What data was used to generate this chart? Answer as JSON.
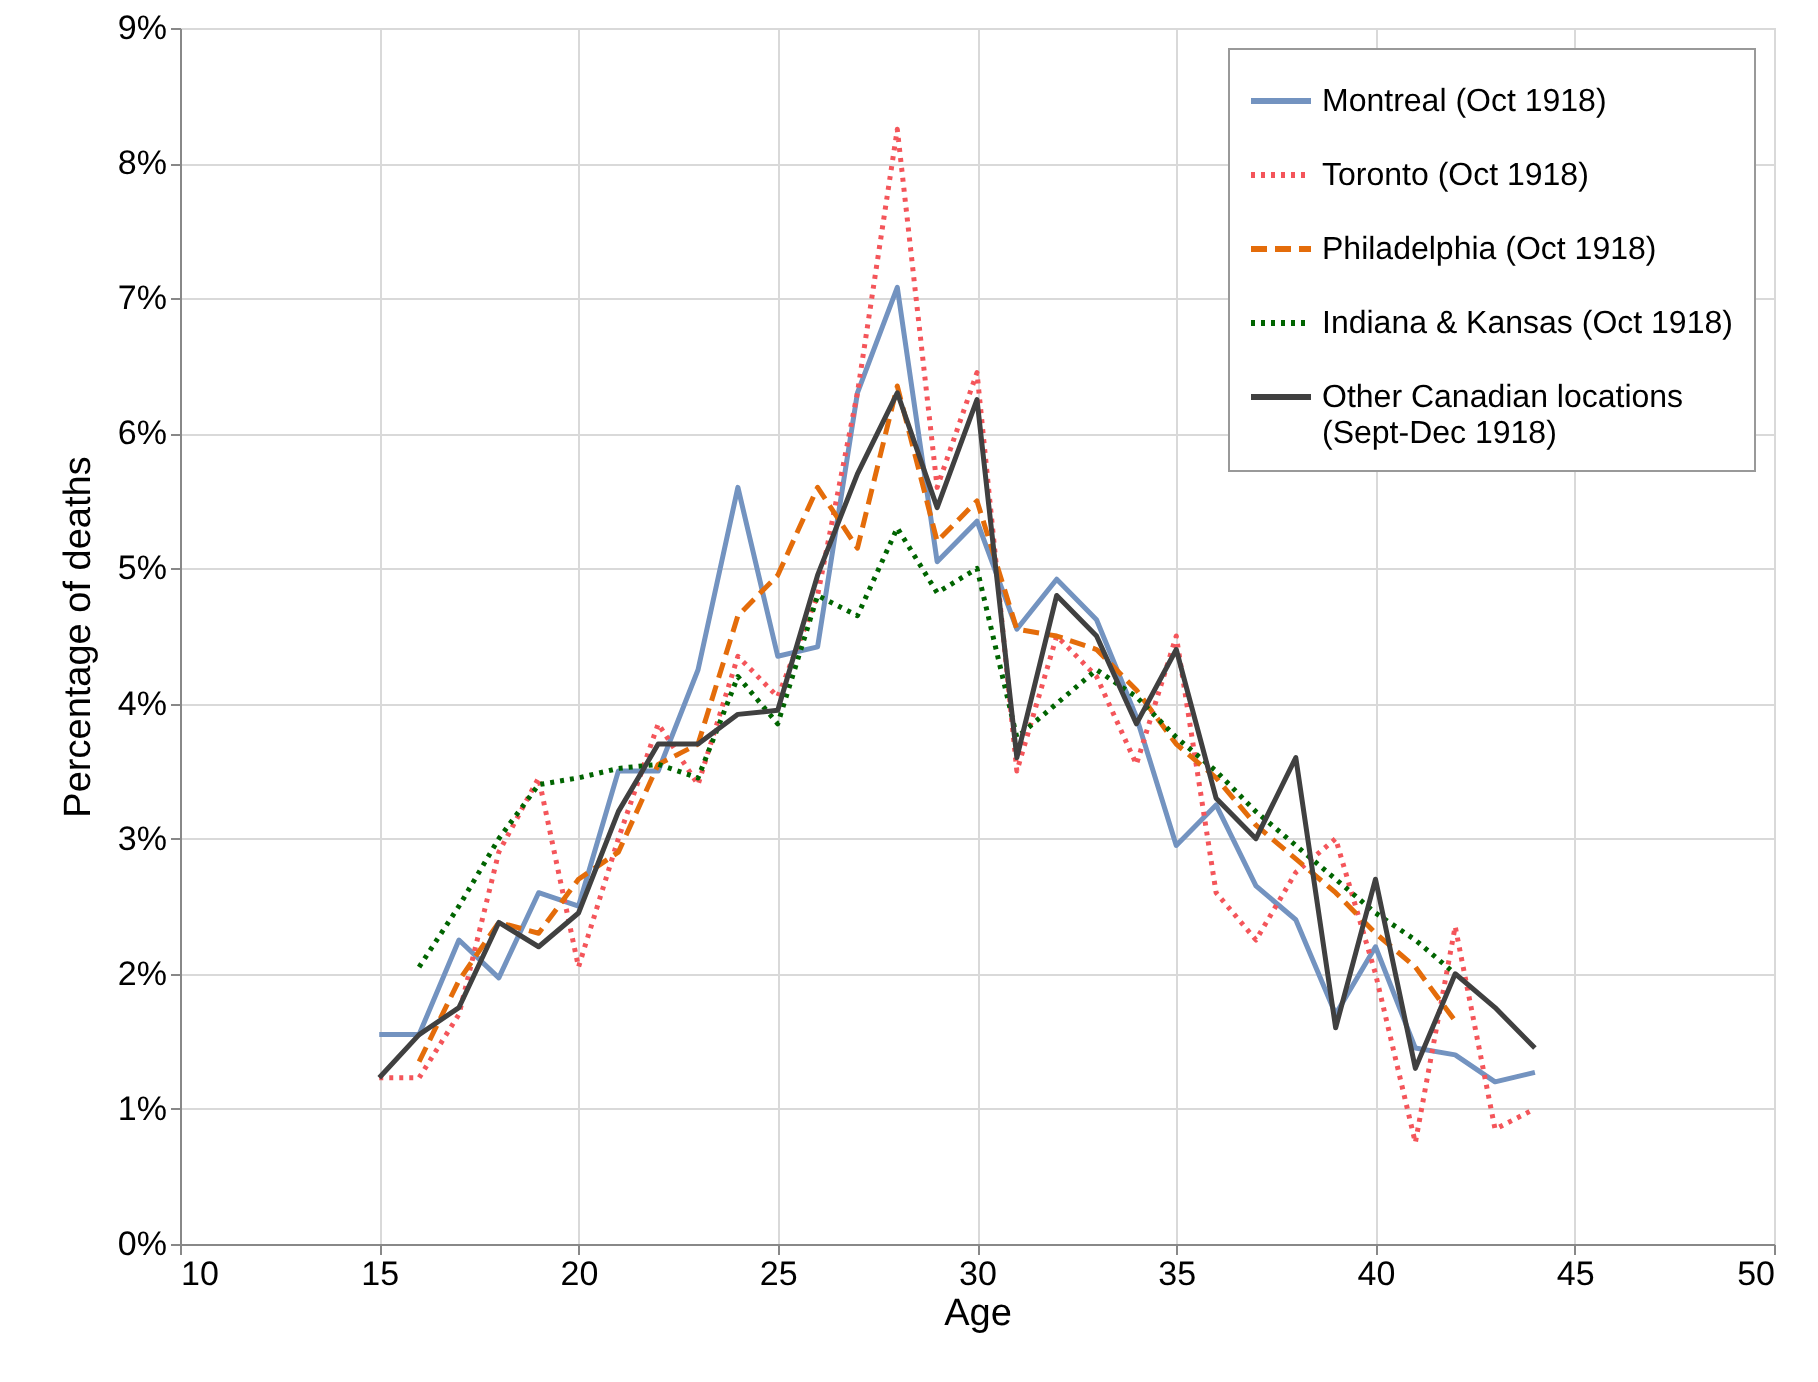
{
  "chart_data": {
    "type": "line",
    "xlabel": "Age",
    "ylabel": "Percentage of deaths",
    "xlim": [
      10,
      50
    ],
    "xticks": [
      10,
      15,
      20,
      25,
      30,
      35,
      40,
      45,
      50
    ],
    "ylim": [
      0,
      9
    ],
    "yticks": [
      {
        "value": 0,
        "label": "0%"
      },
      {
        "value": 1,
        "label": "1%"
      },
      {
        "value": 2,
        "label": "2%"
      },
      {
        "value": 3,
        "label": "3%"
      },
      {
        "value": 4,
        "label": "4%"
      },
      {
        "value": 5,
        "label": "5%"
      },
      {
        "value": 6,
        "label": "6%"
      },
      {
        "value": 7,
        "label": "7%"
      },
      {
        "value": 8,
        "label": "8%"
      },
      {
        "value": 9,
        "label": "9%"
      }
    ],
    "grid": true,
    "legend": "top right",
    "marker": "none",
    "series": [
      {
        "name": "Montreal (Oct 1918)",
        "color": "#7393c0",
        "line_style": "solid",
        "x": [
          15,
          16,
          17,
          18,
          19,
          20,
          21,
          22,
          23,
          24,
          25,
          26,
          27,
          28,
          29,
          30,
          31,
          32,
          33,
          34,
          35,
          36,
          37,
          38,
          39,
          40,
          41,
          42,
          43,
          44
        ],
        "values": [
          1.55,
          1.55,
          2.25,
          1.97,
          2.6,
          2.5,
          3.5,
          3.5,
          4.25,
          5.6,
          4.35,
          4.42,
          6.3,
          7.08,
          5.05,
          5.35,
          4.55,
          4.92,
          4.62,
          3.9,
          2.95,
          3.25,
          2.65,
          2.4,
          1.7,
          2.2,
          1.45,
          1.4,
          1.2,
          1.27
        ]
      },
      {
        "name": "Toronto (Oct 1918)",
        "color": "#f4555a",
        "line_style": "dotted",
        "x": [
          15,
          16,
          17,
          18,
          19,
          20,
          21,
          22,
          23,
          24,
          25,
          26,
          27,
          28,
          29,
          30,
          31,
          32,
          33,
          34,
          35,
          36,
          37,
          38,
          39,
          40,
          41,
          42,
          43,
          44
        ],
        "values": [
          1.23,
          1.23,
          1.7,
          2.9,
          3.45,
          2.05,
          3.0,
          3.85,
          3.4,
          4.35,
          4.05,
          4.8,
          6.3,
          8.25,
          5.6,
          6.45,
          3.5,
          4.5,
          4.2,
          3.55,
          4.5,
          2.6,
          2.25,
          2.75,
          3.0,
          2.0,
          0.75,
          2.35,
          0.85,
          1.0
        ]
      },
      {
        "name": "Philadelphia (Oct 1918)",
        "color": "#e46c0a",
        "line_style": "dashed",
        "x": [
          16,
          17,
          18,
          19,
          20,
          21,
          22,
          23,
          24,
          25,
          26,
          27,
          28,
          29,
          30,
          31,
          32,
          33,
          34,
          35,
          36,
          37,
          38,
          39,
          40,
          41,
          42
        ],
        "values": [
          1.35,
          1.95,
          2.38,
          2.3,
          2.7,
          2.9,
          3.55,
          3.7,
          4.65,
          4.95,
          5.6,
          5.15,
          6.35,
          5.2,
          5.5,
          4.55,
          4.5,
          4.4,
          4.1,
          3.7,
          3.45,
          3.1,
          2.85,
          2.6,
          2.3,
          2.05,
          1.65
        ]
      },
      {
        "name": "Indiana & Kansas (Oct 1918)",
        "color": "#006400",
        "line_style": "dotted",
        "x": [
          16,
          17,
          18,
          19,
          20,
          21,
          22,
          23,
          24,
          25,
          26,
          27,
          28,
          29,
          30,
          31,
          32,
          33,
          34,
          35,
          36,
          37,
          38,
          39,
          40,
          41,
          42
        ],
        "values": [
          2.05,
          2.5,
          3.0,
          3.4,
          3.45,
          3.52,
          3.55,
          3.45,
          4.2,
          3.85,
          4.8,
          4.65,
          5.3,
          4.82,
          5.0,
          3.75,
          4.0,
          4.25,
          4.05,
          3.75,
          3.5,
          3.2,
          2.95,
          2.7,
          2.45,
          2.25,
          2.0
        ]
      },
      {
        "name": "Other Canadian locations (Sept-Dec 1918)",
        "color": "#404040",
        "line_style": "solid",
        "x": [
          15,
          16,
          17,
          18,
          19,
          20,
          21,
          22,
          23,
          24,
          25,
          26,
          27,
          28,
          29,
          30,
          31,
          32,
          33,
          34,
          35,
          36,
          37,
          38,
          39,
          40,
          41,
          42,
          43,
          44
        ],
        "values": [
          1.23,
          1.55,
          1.75,
          2.38,
          2.2,
          2.45,
          3.2,
          3.7,
          3.7,
          3.92,
          3.95,
          4.95,
          5.7,
          6.3,
          5.45,
          6.25,
          3.6,
          4.8,
          4.5,
          3.85,
          4.4,
          3.3,
          3.0,
          3.6,
          1.6,
          2.7,
          1.3,
          2.0,
          1.75,
          1.45
        ]
      }
    ]
  }
}
